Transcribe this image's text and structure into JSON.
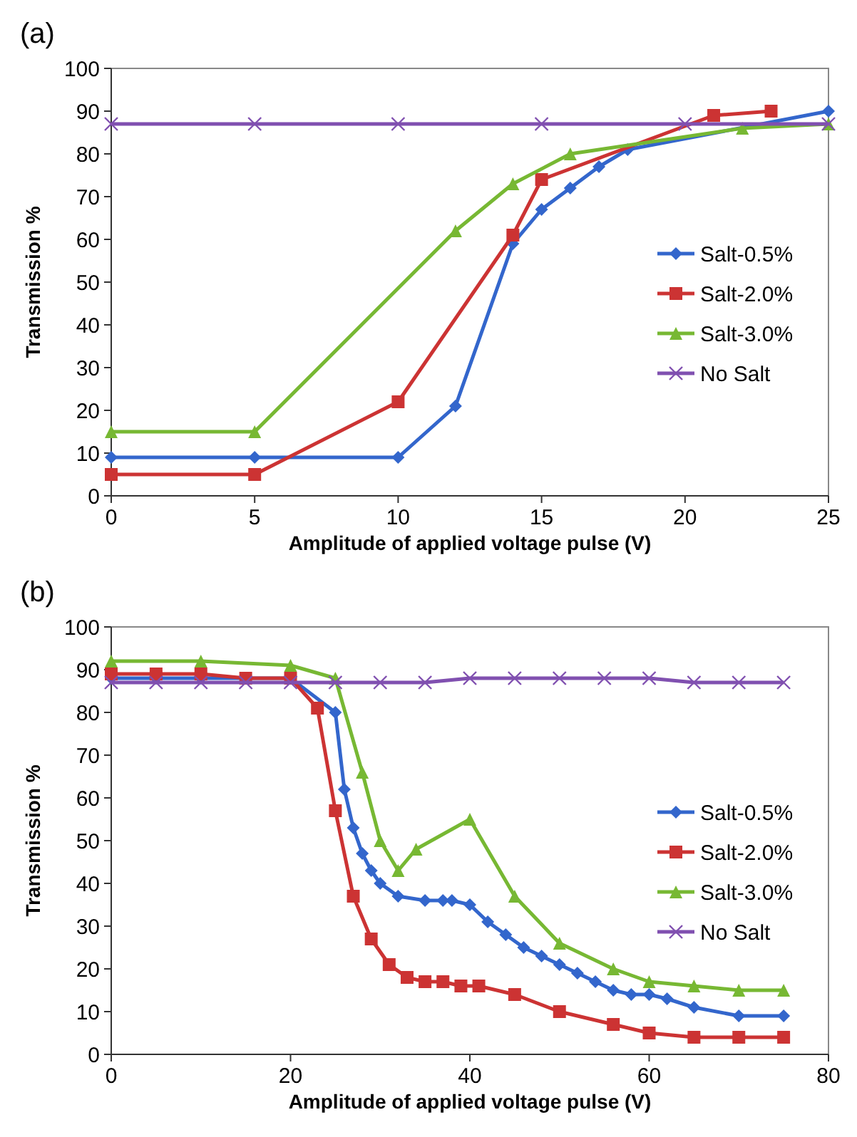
{
  "chart_data": [
    {
      "type": "line",
      "title": "(a)",
      "xlabel": "Amplitude of applied voltage pulse (V)",
      "ylabel": "Transmission %",
      "xlim": [
        0,
        25
      ],
      "xticks": [
        0,
        5,
        10,
        15,
        20,
        25
      ],
      "ylim": [
        0,
        100
      ],
      "yticks": [
        0,
        10,
        20,
        30,
        40,
        50,
        60,
        70,
        80,
        90,
        100
      ],
      "legend": "right",
      "series": [
        {
          "name": "Salt-0.5%",
          "color": "#3366cc",
          "marker": "diamond",
          "x": [
            0,
            5,
            10,
            12,
            14,
            15,
            16,
            17,
            18,
            25
          ],
          "values": [
            9,
            9,
            9,
            21,
            59,
            67,
            72,
            77,
            81,
            90
          ]
        },
        {
          "name": "Salt-2.0%",
          "color": "#cc3333",
          "marker": "square",
          "x": [
            0,
            5,
            10,
            14,
            15,
            21,
            23
          ],
          "values": [
            5,
            5,
            22,
            61,
            74,
            89,
            90
          ]
        },
        {
          "name": "Salt-3.0%",
          "color": "#77b833",
          "marker": "triangle",
          "x": [
            0,
            5,
            12,
            14,
            16,
            22,
            25
          ],
          "values": [
            15,
            15,
            62,
            73,
            80,
            86,
            87
          ]
        },
        {
          "name": "No Salt",
          "color": "#8050b0",
          "marker": "cross",
          "x": [
            0,
            5,
            10,
            15,
            20,
            25
          ],
          "values": [
            87,
            87,
            87,
            87,
            87,
            87
          ]
        }
      ]
    },
    {
      "type": "line",
      "title": "(b)",
      "xlabel": "Amplitude of applied voltage pulse (V)",
      "ylabel": "Transmission %",
      "xlim": [
        0,
        80
      ],
      "xticks": [
        0,
        20,
        40,
        60,
        80
      ],
      "ylim": [
        0,
        100
      ],
      "yticks": [
        0,
        10,
        20,
        30,
        40,
        50,
        60,
        70,
        80,
        90,
        100
      ],
      "legend": "right",
      "series": [
        {
          "name": "Salt-0.5%",
          "color": "#3366cc",
          "marker": "diamond",
          "x": [
            0,
            5,
            10,
            15,
            20,
            25,
            26,
            27,
            28,
            29,
            30,
            32,
            35,
            37,
            38,
            40,
            42,
            44,
            46,
            48,
            50,
            52,
            54,
            56,
            58,
            60,
            62,
            65,
            70,
            75
          ],
          "values": [
            88,
            88,
            88,
            88,
            88,
            80,
            62,
            53,
            47,
            43,
            40,
            37,
            36,
            36,
            36,
            35,
            31,
            28,
            25,
            23,
            21,
            19,
            17,
            15,
            14,
            14,
            13,
            11,
            9,
            9
          ]
        },
        {
          "name": "Salt-2.0%",
          "color": "#cc3333",
          "marker": "square",
          "x": [
            0,
            5,
            10,
            15,
            20,
            23,
            25,
            27,
            29,
            31,
            33,
            35,
            37,
            39,
            41,
            45,
            50,
            56,
            60,
            65,
            70,
            75
          ],
          "values": [
            89,
            89,
            89,
            88,
            88,
            81,
            57,
            37,
            27,
            21,
            18,
            17,
            17,
            16,
            16,
            14,
            10,
            7,
            5,
            4,
            4,
            4
          ]
        },
        {
          "name": "Salt-3.0%",
          "color": "#77b833",
          "marker": "triangle",
          "x": [
            0,
            10,
            20,
            25,
            28,
            30,
            32,
            34,
            40,
            45,
            50,
            56,
            60,
            65,
            70,
            75
          ],
          "values": [
            92,
            92,
            91,
            88,
            66,
            50,
            43,
            48,
            55,
            37,
            26,
            20,
            17,
            16,
            15,
            15
          ]
        },
        {
          "name": "No Salt",
          "color": "#8050b0",
          "marker": "cross",
          "x": [
            0,
            5,
            10,
            15,
            20,
            25,
            30,
            35,
            40,
            45,
            50,
            55,
            60,
            65,
            70,
            75
          ],
          "values": [
            87,
            87,
            87,
            87,
            87,
            87,
            87,
            87,
            88,
            88,
            88,
            88,
            88,
            87,
            87,
            87
          ]
        }
      ]
    }
  ]
}
